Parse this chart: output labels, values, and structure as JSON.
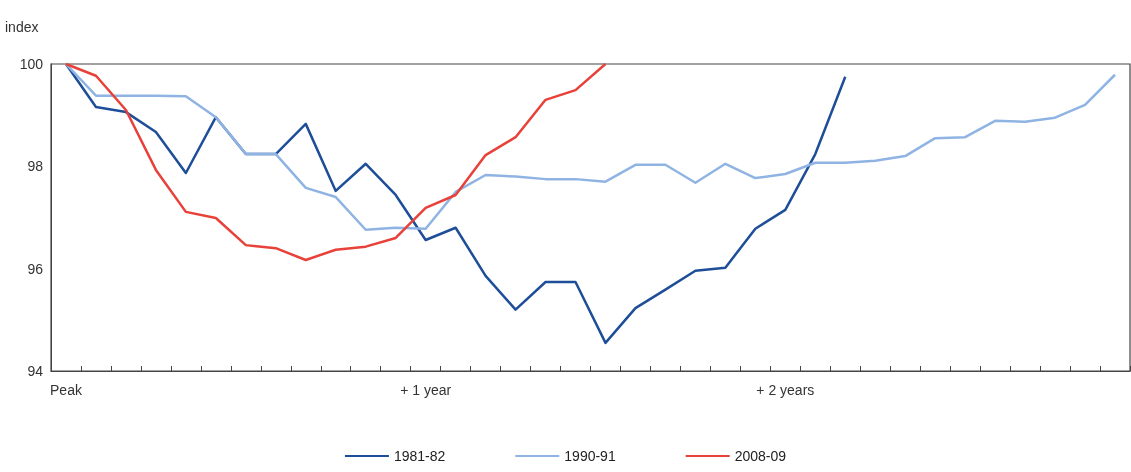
{
  "chart_data": {
    "type": "line",
    "ylabel": "index",
    "categories": [
      "Peak",
      null,
      null,
      null,
      null,
      null,
      null,
      null,
      null,
      null,
      null,
      null,
      "+ 1 year",
      null,
      null,
      null,
      null,
      null,
      null,
      null,
      null,
      null,
      null,
      null,
      "+ 2 years",
      null,
      null,
      null,
      null,
      null,
      null,
      null,
      null,
      null,
      null,
      null
    ],
    "series": [
      {
        "name": "1981-82",
        "color": "#1f4e99",
        "values": [
          100,
          99.16,
          99.06,
          98.67,
          97.87,
          98.96,
          98.24,
          98.24,
          98.83,
          97.52,
          98.05,
          97.44,
          96.56,
          96.8,
          95.86,
          95.2,
          95.74,
          95.74,
          94.55,
          95.23,
          95.59,
          95.96,
          96.02,
          96.78,
          97.15,
          98.24,
          99.75,
          null,
          null,
          null,
          null,
          null,
          null,
          null,
          null,
          null
        ]
      },
      {
        "name": "1990-91",
        "color": "#8fb4e3",
        "values": [
          100,
          99.38,
          99.38,
          99.38,
          99.37,
          98.96,
          98.24,
          98.24,
          97.58,
          97.4,
          96.76,
          96.8,
          96.78,
          97.5,
          97.83,
          97.8,
          97.75,
          97.75,
          97.7,
          98.03,
          98.03,
          97.68,
          98.05,
          97.77,
          97.85,
          98.07,
          98.07,
          98.11,
          98.2,
          98.55,
          98.57,
          98.89,
          98.87,
          98.95,
          99.2,
          99.79
        ]
      },
      {
        "name": "2008-09",
        "color": "#e8413a",
        "values": [
          100,
          99.77,
          99.1,
          97.93,
          97.11,
          96.99,
          96.46,
          96.4,
          96.17,
          96.37,
          96.43,
          96.6,
          97.19,
          97.44,
          98.22,
          98.57,
          99.3,
          99.49,
          100,
          null,
          null,
          null,
          null,
          null,
          null,
          null,
          null,
          null,
          null,
          null,
          null,
          null,
          null,
          null,
          null,
          null
        ]
      }
    ],
    "ylim": [
      94,
      100
    ],
    "yticks": [
      94,
      96,
      98,
      100
    ],
    "grid": false,
    "legend": "bottom",
    "marker": "none",
    "line_style": "solid"
  }
}
